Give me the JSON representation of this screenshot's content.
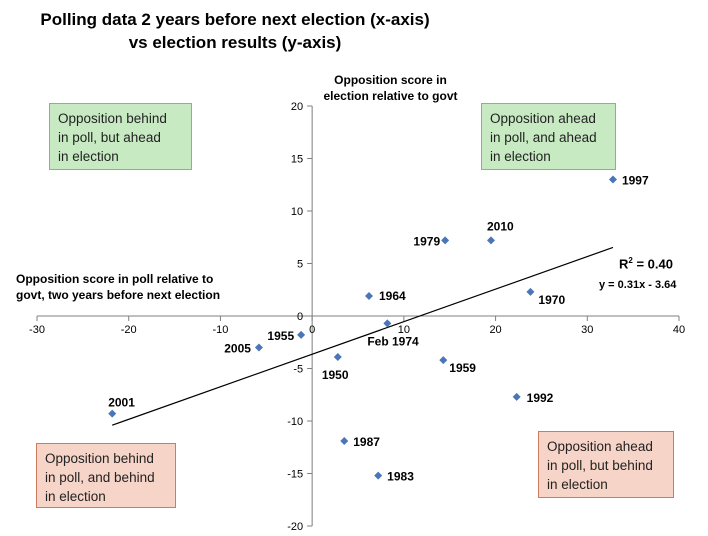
{
  "chart_data": {
    "type": "scatter",
    "title_lines": [
      "Polling data 2 years before next election (x-axis)",
      "vs election results (y-axis)"
    ],
    "xlabel_lines": [
      "Opposition score in poll relative to",
      "govt, two years before next election"
    ],
    "ylabel_lines": [
      "Opposition score in",
      "election relative to govt"
    ],
    "xlim": [
      -30,
      40
    ],
    "ylim": [
      -20,
      20
    ],
    "x_ticks": [
      -30,
      -20,
      -10,
      0,
      10,
      20,
      30,
      40
    ],
    "y_ticks": [
      -20,
      -15,
      -10,
      -5,
      0,
      5,
      10,
      15,
      20
    ],
    "points": [
      {
        "label": "1997",
        "x": 32.8,
        "y": 13.0
      },
      {
        "label": "2010",
        "x": 19.5,
        "y": 7.2
      },
      {
        "label": "1979",
        "x": 14.5,
        "y": 7.2
      },
      {
        "label": "1970",
        "x": 23.8,
        "y": 2.3
      },
      {
        "label": "1964",
        "x": 6.2,
        "y": 1.9
      },
      {
        "label": "Feb 1974",
        "x": 8.2,
        "y": -0.7
      },
      {
        "label": "1955",
        "x": -1.2,
        "y": -1.8
      },
      {
        "label": "2005",
        "x": -5.8,
        "y": -3.0
      },
      {
        "label": "1950",
        "x": 2.8,
        "y": -3.9
      },
      {
        "label": "1959",
        "x": 14.3,
        "y": -4.2
      },
      {
        "label": "1992",
        "x": 22.3,
        "y": -7.7
      },
      {
        "label": "2001",
        "x": -21.8,
        "y": -9.3
      },
      {
        "label": "1987",
        "x": 3.5,
        "y": -11.9
      },
      {
        "label": "1983",
        "x": 7.2,
        "y": -15.2
      }
    ],
    "trendline": {
      "slope": 0.31,
      "intercept": -3.64,
      "x_range": [
        -21.8,
        32.8
      ]
    },
    "r_squared_label": "R",
    "r_squared_sup": "2",
    "r_squared_value": " = 0.40",
    "equation": "y = 0.31x - 3.64",
    "colors": {
      "marker": "#4a76b8",
      "axis": "#7f7f7f",
      "trend": "#000000"
    }
  },
  "quadrants": {
    "top_left": [
      "Opposition behind",
      "in poll, but ahead",
      "in election"
    ],
    "top_right": [
      "Opposition ahead",
      "in poll, and ahead",
      "in election"
    ],
    "bottom_left": [
      "Opposition behind",
      "in poll, and behind",
      "in election"
    ],
    "bottom_right": [
      "Opposition ahead",
      "in poll, but behind",
      "in election"
    ]
  }
}
